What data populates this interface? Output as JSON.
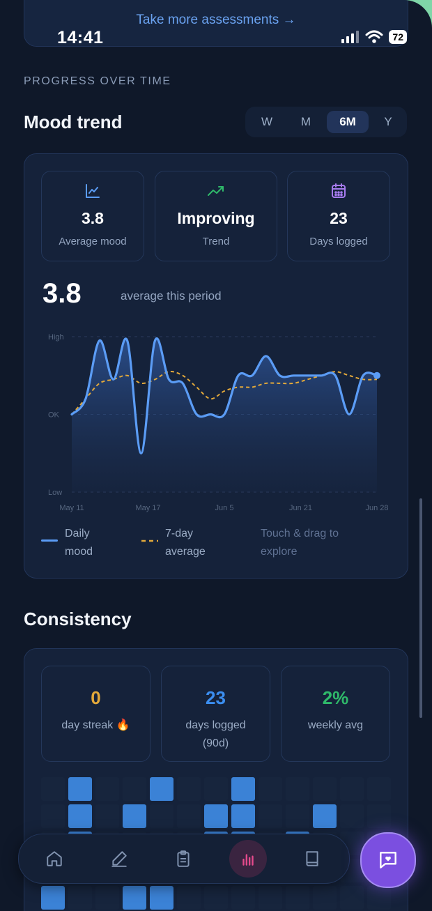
{
  "banner": {
    "link_text": "Take more assessments →"
  },
  "status_bar": {
    "time": "14:41",
    "battery": "72"
  },
  "section_label": "PROGRESS OVER TIME",
  "mood": {
    "title": "Mood trend",
    "ranges": [
      "W",
      "M",
      "6M",
      "Y"
    ],
    "selected_range": "6M",
    "stats": [
      {
        "icon": "line-chart-icon",
        "value": "3.8",
        "label": "Average mood"
      },
      {
        "icon": "trending-up-icon",
        "value": "Improving",
        "label": "Trend"
      },
      {
        "icon": "calendar-icon",
        "value": "23",
        "label": "Days logged"
      }
    ],
    "average_value": "3.8",
    "average_label": "average this period",
    "legend": {
      "daily_line1": "Daily",
      "daily_line2": "mood",
      "avg_line1": "7-day",
      "avg_line2": "average",
      "hint_line1": "Touch & drag to",
      "hint_line2": "explore"
    }
  },
  "chart_data": {
    "type": "line",
    "y_tick_labels": [
      "High",
      "OK",
      "Low"
    ],
    "x_tick_labels": [
      "May 11",
      "May 17",
      "Jun 5",
      "Jun 21",
      "Jun 28"
    ],
    "ylim": [
      1,
      5
    ],
    "y_ticks": {
      "High": 5,
      "OK": 3,
      "Low": 1
    },
    "x": [
      0,
      1,
      2,
      3,
      4,
      5,
      6,
      7,
      8,
      9,
      10,
      11,
      12,
      13,
      14,
      15,
      16,
      17,
      18,
      19,
      20,
      21,
      22
    ],
    "series": [
      {
        "name": "Daily mood",
        "color": "#5b9cf5",
        "style": "solid",
        "values": [
          3.0,
          3.4,
          4.9,
          3.9,
          4.9,
          2.0,
          4.9,
          3.9,
          3.8,
          3.0,
          3.0,
          3.0,
          4.0,
          4.0,
          4.5,
          4.0,
          4.0,
          4.0,
          4.0,
          4.0,
          3.0,
          4.0,
          4.0
        ]
      },
      {
        "name": "7-day average",
        "color": "#e3a93a",
        "style": "dashed",
        "values": [
          3.0,
          3.4,
          3.8,
          3.9,
          4.0,
          3.8,
          3.9,
          4.1,
          4.0,
          3.7,
          3.4,
          3.6,
          3.7,
          3.7,
          3.8,
          3.8,
          3.8,
          3.9,
          4.0,
          4.1,
          4.0,
          3.9,
          3.9
        ]
      }
    ],
    "grid": true,
    "legend_position": "bottom"
  },
  "consistency": {
    "title": "Consistency",
    "stats": [
      {
        "value": "0",
        "label": "day streak 🔥",
        "color": "#e3a93a"
      },
      {
        "value": "23",
        "label": "days logged (90d)",
        "color": "#3b8ef0"
      },
      {
        "value": "2%",
        "label": "weekly avg",
        "color": "#2fb96a"
      }
    ],
    "heatmap_rows": [
      [
        0,
        1,
        0,
        0,
        1,
        0,
        0,
        1,
        0,
        0,
        0,
        0,
        0
      ],
      [
        0,
        1,
        0,
        1,
        0,
        0,
        1,
        1,
        0,
        0,
        1,
        0,
        0
      ],
      [
        0,
        1,
        0,
        0,
        0,
        0,
        1,
        1,
        0,
        1,
        0,
        0,
        0
      ],
      [
        0,
        0,
        0,
        0,
        0,
        0,
        0,
        0,
        0,
        0,
        0,
        0,
        0
      ],
      [
        1,
        0,
        0,
        1,
        1,
        0,
        0,
        0,
        0,
        0,
        0,
        0,
        0
      ]
    ],
    "heat_colors": {
      "on": "#3b82d6",
      "off": "#17253d"
    }
  },
  "nav": {
    "items": [
      "home-icon",
      "journal-icon",
      "assessments-icon",
      "insights-icon",
      "library-icon"
    ],
    "active": "insights-icon"
  },
  "fab": {
    "icon": "chat-heart-icon"
  }
}
